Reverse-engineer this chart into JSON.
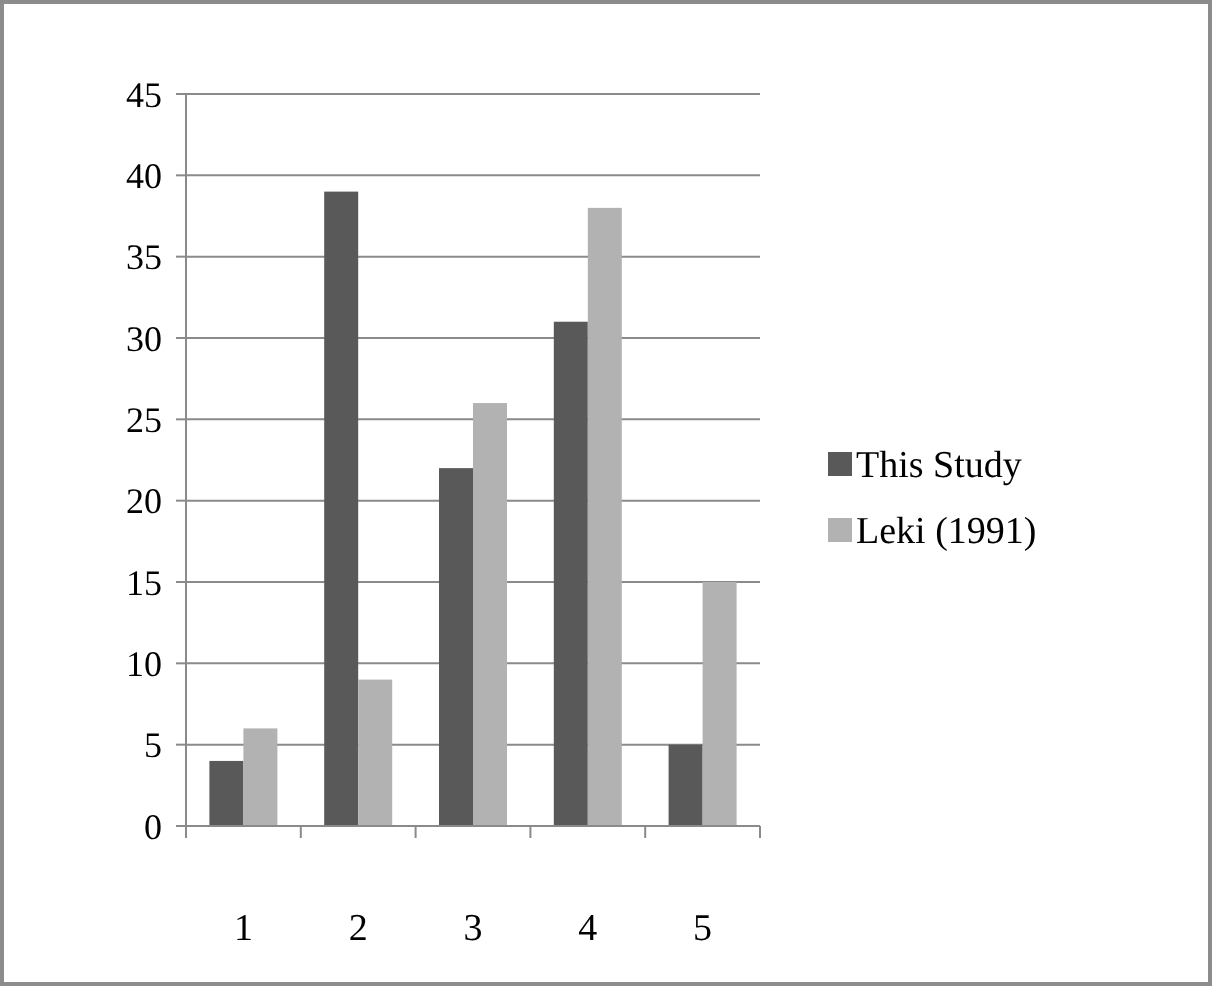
{
  "chart_data": {
    "type": "bar",
    "categories": [
      "1",
      "2",
      "3",
      "4",
      "5"
    ],
    "series": [
      {
        "name": "This Study",
        "color": "#595959",
        "values": [
          4,
          39,
          22,
          31,
          5
        ]
      },
      {
        "name": "Leki (1991)",
        "color": "#b2b2b2",
        "values": [
          6,
          9,
          26,
          38,
          15
        ]
      }
    ],
    "ylim": [
      0,
      45
    ],
    "yticks": [
      0,
      5,
      10,
      15,
      20,
      25,
      30,
      35,
      40,
      45
    ],
    "grid": "y",
    "legend": "right"
  }
}
